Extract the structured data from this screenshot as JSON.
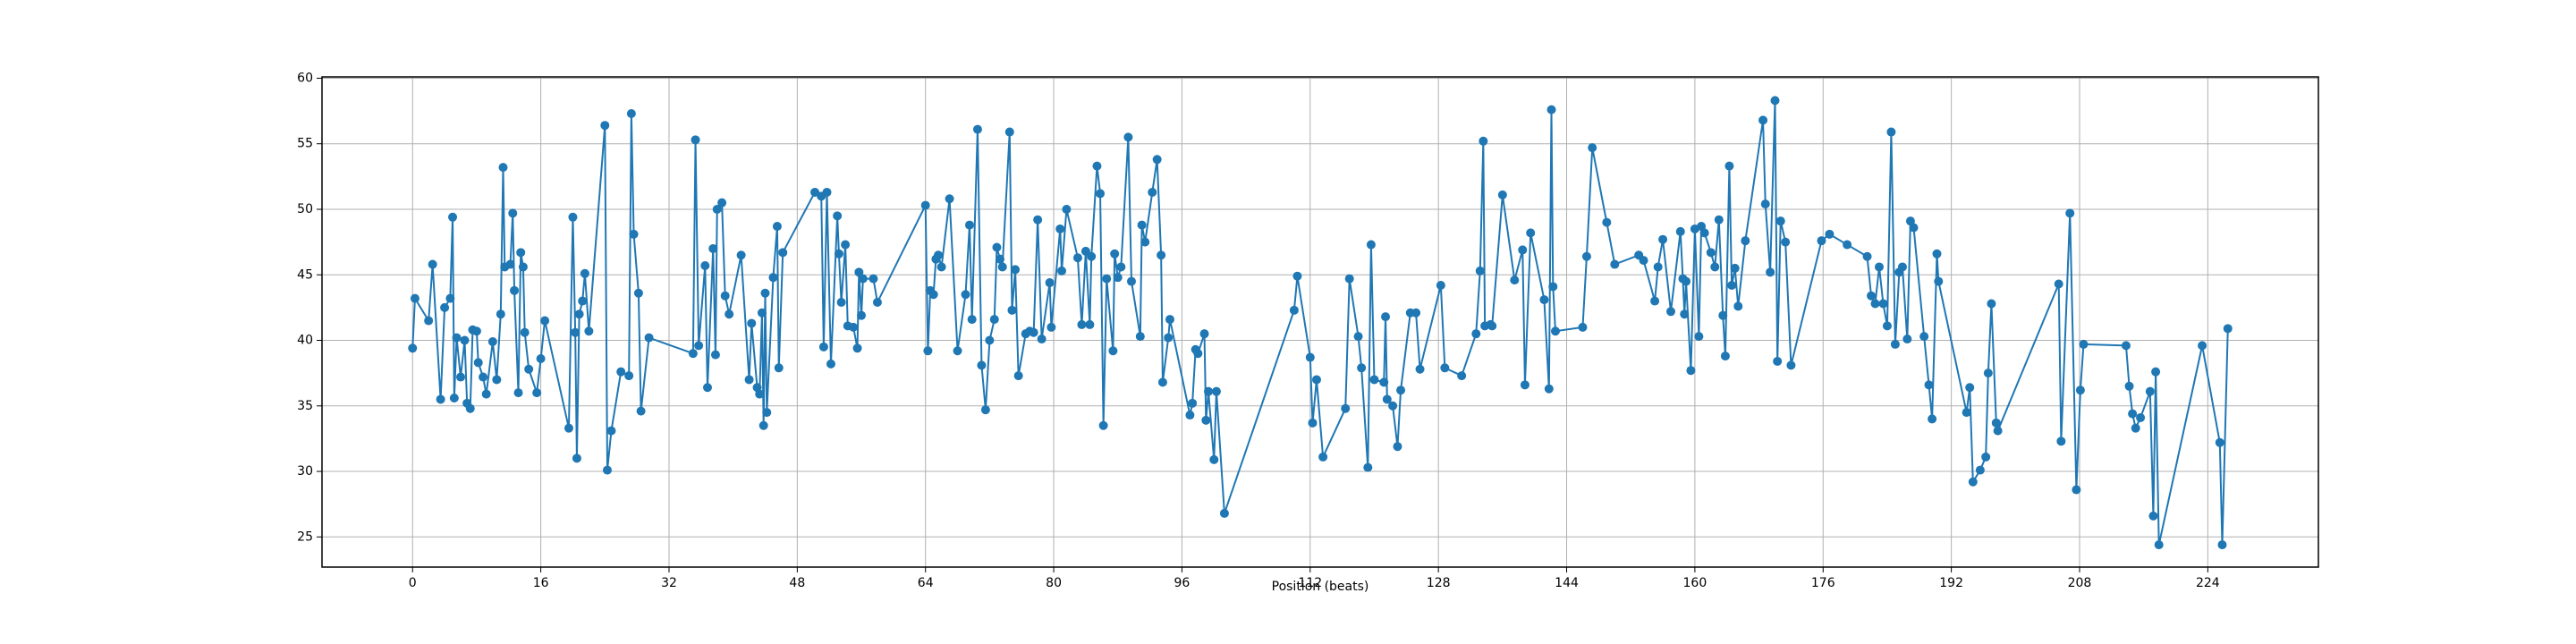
{
  "chart_data": {
    "type": "line",
    "xlabel": "Position (beats)",
    "color": "#1f77b4",
    "grid": true,
    "xlim": [
      -11.3,
      237.8
    ],
    "ylim": [
      22.7,
      60.1
    ],
    "xticks": [
      0,
      16,
      32,
      48,
      64,
      80,
      96,
      112,
      128,
      144,
      160,
      176,
      192,
      208,
      224
    ],
    "yticks": [
      25,
      30,
      35,
      40,
      45,
      50,
      55,
      60
    ],
    "x": [
      0,
      0.3,
      2,
      2.5,
      3.5,
      4,
      4.7,
      5,
      5.2,
      5.5,
      6,
      6.5,
      6.8,
      7.2,
      7.5,
      8,
      8.2,
      8.8,
      9.2,
      10,
      10.5,
      11,
      11.3,
      11.5,
      12.2,
      12.5,
      12.7,
      13.2,
      13.5,
      13.8,
      14,
      14.5,
      15.5,
      16,
      16.5,
      19.5,
      20,
      20.3,
      20.5,
      20.8,
      21.2,
      21.5,
      22,
      24,
      24.3,
      24.8,
      26,
      27,
      27.3,
      27.6,
      28.2,
      28.5,
      29.5,
      35,
      35.3,
      35.7,
      36.5,
      36.8,
      37.5,
      37.8,
      38,
      38.6,
      39,
      39.5,
      41,
      42,
      42.3,
      43,
      43.3,
      43.6,
      43.8,
      44,
      44.2,
      45,
      45.5,
      45.7,
      46.2,
      50.2,
      51,
      51.3,
      51.7,
      52.2,
      53,
      53.2,
      53.5,
      54,
      54.3,
      55,
      55.5,
      55.7,
      56,
      56.2,
      57.5,
      58,
      64,
      64.3,
      64.6,
      65,
      65.3,
      65.6,
      66,
      67,
      68,
      69,
      69.5,
      69.8,
      70.5,
      71,
      71.5,
      72,
      72.6,
      72.9,
      73.3,
      73.6,
      74.5,
      74.8,
      75.2,
      75.6,
      76.5,
      77,
      77.5,
      78,
      78.5,
      79.5,
      79.7,
      80.8,
      81,
      81.6,
      83,
      83.5,
      84,
      84.5,
      84.7,
      85.4,
      85.8,
      86.2,
      86.6,
      87.4,
      87.6,
      88,
      88.4,
      89.3,
      89.7,
      90.8,
      91,
      91.4,
      92.3,
      92.9,
      93.4,
      93.6,
      94.3,
      94.5,
      97,
      97.3,
      97.7,
      98,
      98.8,
      99,
      99.3,
      100,
      100.3,
      101.3,
      110,
      110.4,
      112,
      112.3,
      112.8,
      113.6,
      116.4,
      116.9,
      118,
      118.4,
      119.2,
      119.6,
      120,
      121.2,
      121.4,
      121.6,
      122.3,
      122.9,
      123.3,
      124.5,
      125.2,
      125.7,
      128.3,
      128.8,
      130.9,
      132.7,
      133.2,
      133.6,
      133.8,
      134.5,
      134.7,
      136,
      137.5,
      138.5,
      138.8,
      139.5,
      141.2,
      141.8,
      142.1,
      142.3,
      142.6,
      146,
      146.5,
      147.2,
      149,
      150,
      153,
      153.6,
      155,
      155.4,
      156,
      157,
      158.2,
      158.5,
      158.7,
      158.9,
      159.5,
      160,
      160.5,
      160.8,
      161.2,
      162,
      162.5,
      163,
      163.5,
      163.8,
      164.3,
      164.6,
      165,
      165.4,
      166.3,
      168.5,
      168.8,
      169.4,
      170,
      170.3,
      170.7,
      171.3,
      172,
      175.8,
      176.8,
      179,
      181.5,
      182,
      182.5,
      183,
      183.5,
      184,
      184.5,
      185,
      185.5,
      185.9,
      186.5,
      186.9,
      187.3,
      188.6,
      189.2,
      189.6,
      190.2,
      190.4,
      193.9,
      194.3,
      194.7,
      195.6,
      196.3,
      196.6,
      197,
      197.6,
      197.8,
      205.4,
      205.7,
      206.8,
      207.6,
      208.1,
      208.5,
      213.8,
      214.2,
      214.6,
      215,
      215.6,
      216.8,
      217.2,
      217.5,
      217.9,
      223.3,
      225.5,
      225.8,
      226.5
    ],
    "values": [
      39.4,
      43.2,
      41.5,
      45.8,
      35.5,
      42.5,
      43.2,
      49.4,
      35.6,
      40.2,
      37.2,
      40,
      35.2,
      34.8,
      40.8,
      40.7,
      38.3,
      37.2,
      35.9,
      39.9,
      37,
      42,
      53.2,
      45.6,
      45.8,
      49.7,
      43.8,
      36,
      46.7,
      45.6,
      40.6,
      37.8,
      36,
      38.6,
      41.5,
      33.3,
      49.4,
      40.6,
      31,
      42,
      43,
      45.1,
      40.7,
      56.4,
      30.1,
      33.1,
      37.6,
      37.3,
      57.3,
      48.1,
      43.6,
      34.6,
      40.2,
      39,
      55.3,
      39.6,
      45.7,
      36.4,
      47,
      38.9,
      50,
      50.5,
      43.4,
      42,
      46.5,
      37,
      41.3,
      36.4,
      35.9,
      42.1,
      33.5,
      43.6,
      34.5,
      44.8,
      48.7,
      37.9,
      46.7,
      51.3,
      51,
      39.5,
      51.3,
      38.2,
      49.5,
      46.6,
      42.9,
      47.3,
      41.1,
      41,
      39.4,
      45.2,
      41.9,
      44.7,
      44.7,
      42.9,
      50.3,
      39.2,
      43.8,
      43.5,
      46.2,
      46.5,
      45.6,
      50.8,
      39.2,
      43.5,
      48.8,
      41.6,
      56.1,
      38.1,
      34.7,
      40,
      41.6,
      47.1,
      46.2,
      45.6,
      55.9,
      42.3,
      45.4,
      37.3,
      40.5,
      40.7,
      40.6,
      49.2,
      40.1,
      44.4,
      41,
      48.5,
      45.3,
      50,
      46.3,
      41.2,
      46.8,
      41.2,
      46.4,
      53.3,
      51.2,
      33.5,
      44.7,
      39.2,
      46.6,
      44.8,
      45.6,
      55.5,
      44.5,
      40.3,
      48.8,
      47.5,
      51.3,
      53.8,
      46.5,
      36.8,
      40.2,
      41.6,
      34.3,
      35.2,
      39.3,
      39,
      40.5,
      33.9,
      36.1,
      30.9,
      36.1,
      26.8,
      42.3,
      44.9,
      38.7,
      33.7,
      37,
      31.1,
      34.8,
      44.7,
      40.3,
      37.9,
      30.3,
      47.3,
      37,
      36.8,
      41.8,
      35.5,
      35,
      31.9,
      36.2,
      42.1,
      42.1,
      37.8,
      44.2,
      37.9,
      37.3,
      40.5,
      45.3,
      55.2,
      41.1,
      41.2,
      41.1,
      51.1,
      44.6,
      46.9,
      36.6,
      48.2,
      43.1,
      36.3,
      57.6,
      44.1,
      40.7,
      41,
      46.4,
      54.7,
      49,
      45.8,
      46.5,
      46.1,
      43,
      45.6,
      47.7,
      42.2,
      48.3,
      44.7,
      42,
      44.5,
      37.7,
      48.5,
      40.3,
      48.7,
      48.2,
      46.7,
      45.6,
      49.2,
      41.9,
      38.8,
      53.3,
      44.2,
      45.5,
      42.6,
      47.6,
      56.8,
      50.4,
      45.2,
      58.3,
      38.4,
      49.1,
      47.5,
      38.1,
      47.6,
      48.1,
      47.3,
      46.4,
      43.4,
      42.8,
      45.6,
      42.8,
      41.1,
      55.9,
      39.7,
      45.2,
      45.6,
      40.1,
      49.1,
      48.6,
      40.3,
      36.6,
      34,
      46.6,
      44.5,
      34.5,
      36.4,
      29.2,
      30.1,
      31.1,
      37.5,
      42.8,
      33.7,
      33.1,
      44.3,
      32.3,
      49.7,
      28.6,
      36.2,
      39.7,
      39.6,
      36.5,
      34.4,
      33.3,
      34.1,
      36.1,
      26.6,
      37.6,
      24.4,
      39.6,
      32.2,
      24.4,
      40.9
    ]
  }
}
